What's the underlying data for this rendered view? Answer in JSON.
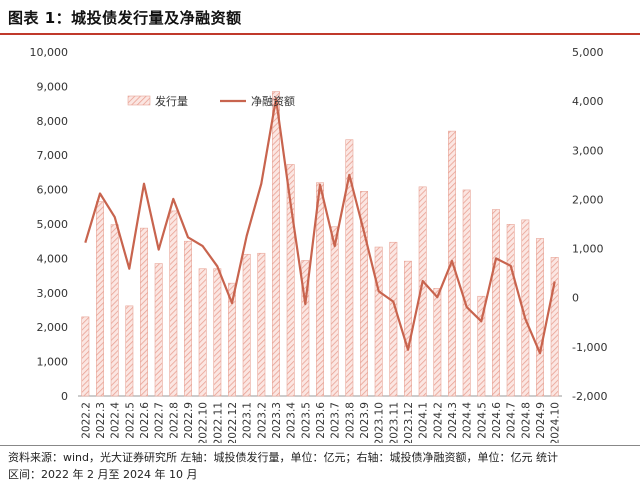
{
  "header": {
    "title": "图表 1：城投债发行量及净融资额"
  },
  "footer": {
    "line1": "资料来源：wind，光大证券研究所   左轴：城投债发行量，单位：亿元；右轴：城投债净融资额，单位：亿元   统计",
    "line2": "区间：2022 年 2 月至 2024 年 10 月"
  },
  "colors": {
    "bar_fill": "#f4c7c0",
    "bar_stroke": "#e8a598",
    "line": "#c8644e",
    "title_rule": "#c0392b"
  },
  "chart_data": {
    "type": "bar+line",
    "categories": [
      "2022.2",
      "2022.3",
      "2022.4",
      "2022.5",
      "2022.6",
      "2022.7",
      "2022.8",
      "2022.9",
      "2022.10",
      "2022.11",
      "2022.12",
      "2023.1",
      "2023.2",
      "2023.3",
      "2023.4",
      "2023.5",
      "2023.6",
      "2023.7",
      "2023.8",
      "2023.9",
      "2023.10",
      "2023.11",
      "2023.12",
      "2024.1",
      "2024.2",
      "2024.3",
      "2024.4",
      "2024.5",
      "2024.6",
      "2024.7",
      "2024.8",
      "2024.9",
      "2024.10"
    ],
    "series": [
      {
        "name": "发行量",
        "type": "bar",
        "axis": "left",
        "values": [
          2300,
          5650,
          4980,
          2620,
          4880,
          3850,
          5380,
          4500,
          3700,
          3700,
          3280,
          4120,
          4150,
          8850,
          6730,
          3940,
          6200,
          4920,
          7450,
          5950,
          4330,
          4470,
          3920,
          6080,
          3130,
          7700,
          5990,
          2900,
          5420,
          4990,
          5120,
          4580,
          4030
        ]
      },
      {
        "name": "净融资额",
        "type": "line",
        "axis": "right",
        "values": [
          1120,
          2120,
          1640,
          590,
          2320,
          980,
          2010,
          1230,
          1050,
          640,
          -110,
          1260,
          2320,
          4050,
          1900,
          -130,
          2300,
          1050,
          2500,
          1340,
          130,
          -80,
          -1060,
          340,
          10,
          750,
          -190,
          -480,
          800,
          650,
          -430,
          -1130,
          330
        ]
      }
    ],
    "left_axis": {
      "min": 0,
      "max": 10000,
      "ticks": [
        "0",
        "1,000",
        "2,000",
        "3,000",
        "4,000",
        "5,000",
        "6,000",
        "7,000",
        "8,000",
        "9,000",
        "10,000"
      ]
    },
    "right_axis": {
      "min": -2000,
      "max": 5000,
      "ticks": [
        "-2,000",
        "-1,000",
        "0",
        "1,000",
        "2,000",
        "3,000",
        "4,000",
        "5,000"
      ]
    },
    "legend_position": "top-center"
  }
}
